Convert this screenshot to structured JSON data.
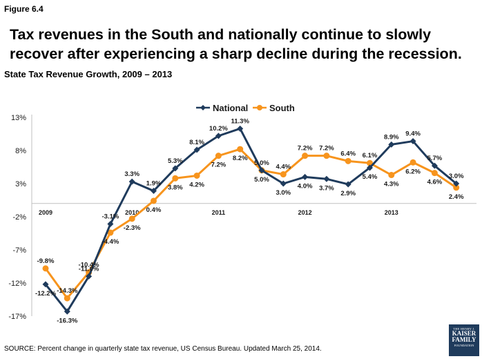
{
  "figure_label": "Figure 6.4",
  "headline": "Tax revenues in the South and nationally continue to slowly recover after experiencing a sharp decline during the recession.",
  "chart_data": {
    "type": "line",
    "title": "State Tax Revenue Growth, 2009 – 2013",
    "ylim": [
      -17,
      13
    ],
    "y_ticks": [
      "13%",
      "8%",
      "3%",
      "-2%",
      "-7%",
      "-12%",
      "-17%"
    ],
    "x_year_labels": [
      "2009",
      "2010",
      "2011",
      "2012",
      "2013"
    ],
    "grid": false,
    "legend_position": "top-center",
    "series": [
      {
        "name": "National",
        "color": "#1f3b5c",
        "marker": "diamond",
        "values": [
          -12.2,
          -16.3,
          -11.0,
          -3.1,
          3.3,
          1.9,
          5.3,
          8.1,
          10.2,
          11.3,
          5.0,
          3.0,
          4.0,
          3.7,
          2.9,
          5.4,
          8.9,
          9.4,
          5.7,
          3.0
        ],
        "labels": [
          "-12.2%",
          "-16.3%",
          "-11.0%",
          "-3.1%",
          "3.3%",
          "1.9%",
          "5.3%",
          "8.1%",
          "10.2%",
          "11.3%",
          "5.0%",
          "3.0%",
          "4.0%",
          "3.7%",
          "2.9%",
          "5.4%",
          "8.9%",
          "9.4%",
          "5.7%",
          "3.0%"
        ]
      },
      {
        "name": "South",
        "color": "#f7941d",
        "marker": "circle",
        "values": [
          -9.8,
          -14.3,
          -10.4,
          -4.4,
          -2.3,
          0.4,
          3.8,
          4.2,
          7.2,
          8.2,
          5.0,
          4.4,
          7.2,
          7.2,
          6.4,
          6.1,
          4.3,
          6.2,
          4.6,
          2.4
        ],
        "labels": [
          "-9.8%",
          "-14.3%",
          "-10.4%",
          "-4.4%",
          "-2.3%",
          "0.4%",
          "3.8%",
          "4.2%",
          "7.2%",
          "8.2%",
          "5.0%",
          "4.4%",
          "7.2%",
          "7.2%",
          "6.4%",
          "6.1%",
          "4.3%",
          "6.2%",
          "4.6%",
          "2.4%"
        ]
      }
    ]
  },
  "source": "SOURCE: Percent change in quarterly state tax revenue, US Census Bureau.  Updated March 25, 2014.",
  "logo": {
    "line1": "THE HENRY J.",
    "line2": "KAISER",
    "line3": "FAMILY",
    "line4": "FOUNDATION"
  }
}
